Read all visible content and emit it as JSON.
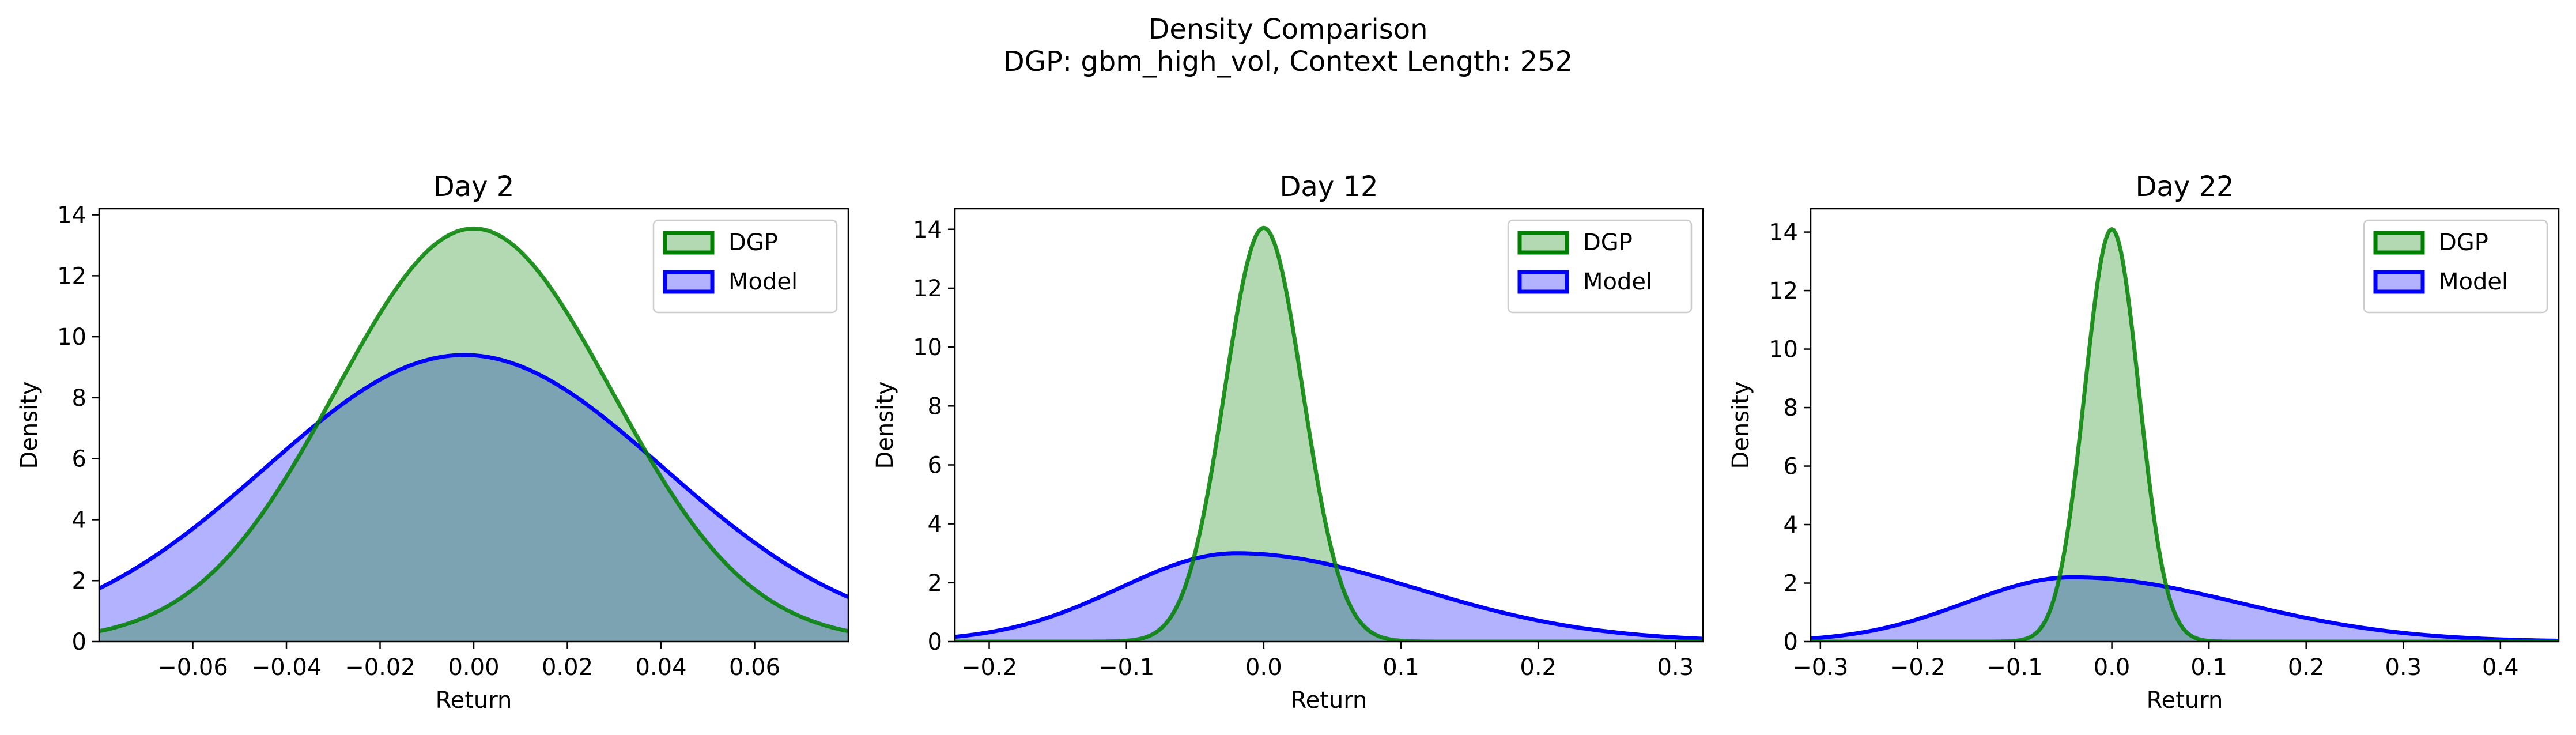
{
  "figure": {
    "suptitle_line1": "Density Comparison",
    "suptitle_line2": "DGP: gbm_high_vol, Context Length: 252"
  },
  "colors": {
    "dgp_line": "#008000",
    "dgp_fill": "#008000",
    "model_line": "#0000ff",
    "model_fill": "#0000ff"
  },
  "chart_data": [
    {
      "type": "area",
      "title": "Day 2",
      "xlabel": "Return",
      "ylabel": "Density",
      "xlim": [
        -0.08,
        0.08
      ],
      "ylim": [
        0,
        14.2
      ],
      "xticks": [
        -0.06,
        -0.04,
        -0.02,
        0.0,
        0.02,
        0.04,
        0.06
      ],
      "xtick_labels": [
        "−0.06",
        "−0.04",
        "−0.02",
        "0.00",
        "0.02",
        "0.04",
        "0.06"
      ],
      "yticks": [
        0,
        2,
        4,
        6,
        8,
        10,
        12,
        14
      ],
      "legend": "top-right",
      "grid": false,
      "series": [
        {
          "name": "DGP",
          "mean": 0.0,
          "std": 0.0295,
          "peak": 13.55
        },
        {
          "name": "Model",
          "mean": -0.002,
          "std": 0.0425,
          "peak": 9.4
        }
      ]
    },
    {
      "type": "area",
      "title": "Day 12",
      "xlabel": "Return",
      "ylabel": "Density",
      "xlim": [
        -0.225,
        0.32
      ],
      "ylim": [
        0,
        14.7
      ],
      "xticks": [
        -0.2,
        -0.1,
        0.0,
        0.1,
        0.2,
        0.3
      ],
      "xtick_labels": [
        "−0.2",
        "−0.1",
        "0.0",
        "0.1",
        "0.2",
        "0.3"
      ],
      "yticks": [
        0,
        2,
        4,
        6,
        8,
        10,
        12,
        14
      ],
      "legend": "top-right",
      "grid": false,
      "series": [
        {
          "name": "DGP",
          "mean": 0.0,
          "std": 0.0285,
          "peak": 14.05
        },
        {
          "name": "Model",
          "mean": -0.02,
          "std_left": 0.085,
          "std_right": 0.13,
          "peak": 3.0
        }
      ]
    },
    {
      "type": "area",
      "title": "Day 22",
      "xlabel": "Return",
      "ylabel": "Density",
      "xlim": [
        -0.31,
        0.46
      ],
      "ylim": [
        0,
        14.8
      ],
      "xticks": [
        -0.3,
        -0.2,
        -0.1,
        0.0,
        0.1,
        0.2,
        0.3,
        0.4
      ],
      "xtick_labels": [
        "−0.3",
        "−0.2",
        "−0.1",
        "0.0",
        "0.1",
        "0.2",
        "0.3",
        "0.4"
      ],
      "yticks": [
        0,
        2,
        4,
        6,
        8,
        10,
        12,
        14
      ],
      "legend": "top-right",
      "grid": false,
      "series": [
        {
          "name": "DGP",
          "mean": 0.0,
          "std": 0.028,
          "peak": 14.1
        },
        {
          "name": "Model",
          "mean": -0.04,
          "std_left": 0.11,
          "std_right": 0.17,
          "peak": 2.2
        }
      ]
    }
  ]
}
